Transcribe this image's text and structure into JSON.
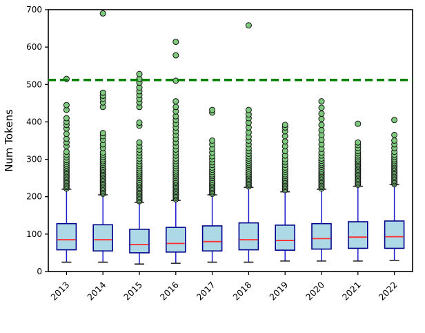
{
  "figure": {
    "ylabel": "Num Tokens"
  },
  "chart_data": {
    "type": "boxplot",
    "title": "",
    "xlabel": "",
    "ylabel": "Num Tokens",
    "ylim": [
      0,
      700
    ],
    "yticks": [
      0,
      100,
      200,
      300,
      400,
      500,
      600,
      700
    ],
    "categories": [
      "2013",
      "2014",
      "2015",
      "2016",
      "2017",
      "2018",
      "2019",
      "2020",
      "2021",
      "2022"
    ],
    "reference_line": {
      "y": 512,
      "color": "#008000",
      "style": "dashed",
      "width": 3.5
    },
    "grid": false,
    "legend": "none",
    "colors": {
      "box_fill": "#add8e6",
      "box_edge": "#00008b",
      "median": "#ff2d2d",
      "whisker": "#1c1ccc",
      "cap": "#111111",
      "outlier_fill": "#7fc97f",
      "outlier_edge": "#111111",
      "axis": "#000000"
    },
    "series": [
      {
        "category": "2013",
        "whisker_low": 25,
        "q1": 58,
        "median": 85,
        "q3": 128,
        "whisker_high": 220,
        "outliers": [
          222,
          226,
          230,
          234,
          238,
          242,
          246,
          250,
          254,
          258,
          262,
          266,
          270,
          274,
          278,
          283,
          288,
          293,
          298,
          305,
          312,
          320,
          335,
          345,
          355,
          368,
          382,
          392,
          400,
          410,
          432,
          445,
          515
        ]
      },
      {
        "category": "2014",
        "whisker_low": 25,
        "q1": 55,
        "median": 85,
        "q3": 125,
        "whisker_high": 205,
        "outliers": [
          208,
          212,
          216,
          220,
          224,
          228,
          232,
          236,
          240,
          244,
          248,
          252,
          256,
          260,
          264,
          268,
          272,
          276,
          280,
          285,
          290,
          295,
          300,
          306,
          312,
          318,
          330,
          340,
          352,
          362,
          370,
          440,
          452,
          462,
          470,
          478,
          690
        ]
      },
      {
        "category": "2015",
        "whisker_low": 20,
        "q1": 50,
        "median": 72,
        "q3": 113,
        "whisker_high": 185,
        "outliers": [
          188,
          192,
          196,
          200,
          204,
          208,
          212,
          216,
          220,
          224,
          228,
          232,
          236,
          240,
          245,
          250,
          255,
          260,
          265,
          270,
          276,
          282,
          288,
          295,
          302,
          310,
          318,
          326,
          335,
          345,
          390,
          398,
          440,
          452,
          462,
          472,
          482,
          492,
          505,
          515,
          528
        ]
      },
      {
        "category": "2016",
        "whisker_low": 22,
        "q1": 52,
        "median": 75,
        "q3": 118,
        "whisker_high": 190,
        "outliers": [
          193,
          197,
          201,
          205,
          209,
          213,
          217,
          221,
          225,
          229,
          233,
          237,
          241,
          245,
          250,
          255,
          260,
          265,
          270,
          276,
          282,
          288,
          295,
          302,
          310,
          318,
          326,
          335,
          345,
          355,
          365,
          375,
          385,
          395,
          405,
          415,
          428,
          440,
          455,
          510,
          578,
          614
        ]
      },
      {
        "category": "2017",
        "whisker_low": 25,
        "q1": 55,
        "median": 80,
        "q3": 122,
        "whisker_high": 205,
        "outliers": [
          208,
          212,
          216,
          220,
          224,
          228,
          232,
          236,
          240,
          245,
          250,
          255,
          260,
          266,
          272,
          278,
          285,
          292,
          300,
          308,
          318,
          328,
          340,
          350,
          425,
          432
        ]
      },
      {
        "category": "2018",
        "whisker_low": 25,
        "q1": 58,
        "median": 85,
        "q3": 130,
        "whisker_high": 225,
        "outliers": [
          228,
          232,
          236,
          240,
          244,
          248,
          252,
          256,
          260,
          265,
          270,
          275,
          280,
          285,
          290,
          296,
          302,
          308,
          315,
          322,
          330,
          340,
          350,
          360,
          372,
          385,
          398,
          410,
          420,
          432,
          658
        ]
      },
      {
        "category": "2019",
        "whisker_low": 28,
        "q1": 57,
        "median": 83,
        "q3": 124,
        "whisker_high": 213,
        "outliers": [
          218,
          222,
          226,
          230,
          234,
          238,
          242,
          246,
          250,
          255,
          260,
          266,
          272,
          278,
          285,
          292,
          300,
          310,
          322,
          335,
          348,
          362,
          375,
          385,
          392
        ]
      },
      {
        "category": "2020",
        "whisker_low": 28,
        "q1": 60,
        "median": 88,
        "q3": 128,
        "whisker_high": 220,
        "outliers": [
          222,
          226,
          230,
          234,
          238,
          242,
          246,
          250,
          254,
          258,
          262,
          266,
          270,
          275,
          280,
          285,
          290,
          296,
          302,
          310,
          318,
          328,
          340,
          352,
          365,
          378,
          392,
          408,
          422,
          438,
          455
        ]
      },
      {
        "category": "2021",
        "whisker_low": 28,
        "q1": 62,
        "median": 92,
        "q3": 133,
        "whisker_high": 228,
        "outliers": [
          232,
          236,
          240,
          244,
          248,
          252,
          256,
          260,
          264,
          268,
          272,
          276,
          280,
          284,
          288,
          292,
          296,
          300,
          305,
          310,
          316,
          322,
          330,
          338,
          345,
          395
        ]
      },
      {
        "category": "2022",
        "whisker_low": 30,
        "q1": 62,
        "median": 93,
        "q3": 135,
        "whisker_high": 233,
        "outliers": [
          234,
          238,
          242,
          246,
          250,
          254,
          258,
          262,
          266,
          270,
          274,
          278,
          282,
          286,
          290,
          295,
          300,
          306,
          312,
          320,
          330,
          340,
          350,
          365,
          405
        ]
      }
    ]
  }
}
